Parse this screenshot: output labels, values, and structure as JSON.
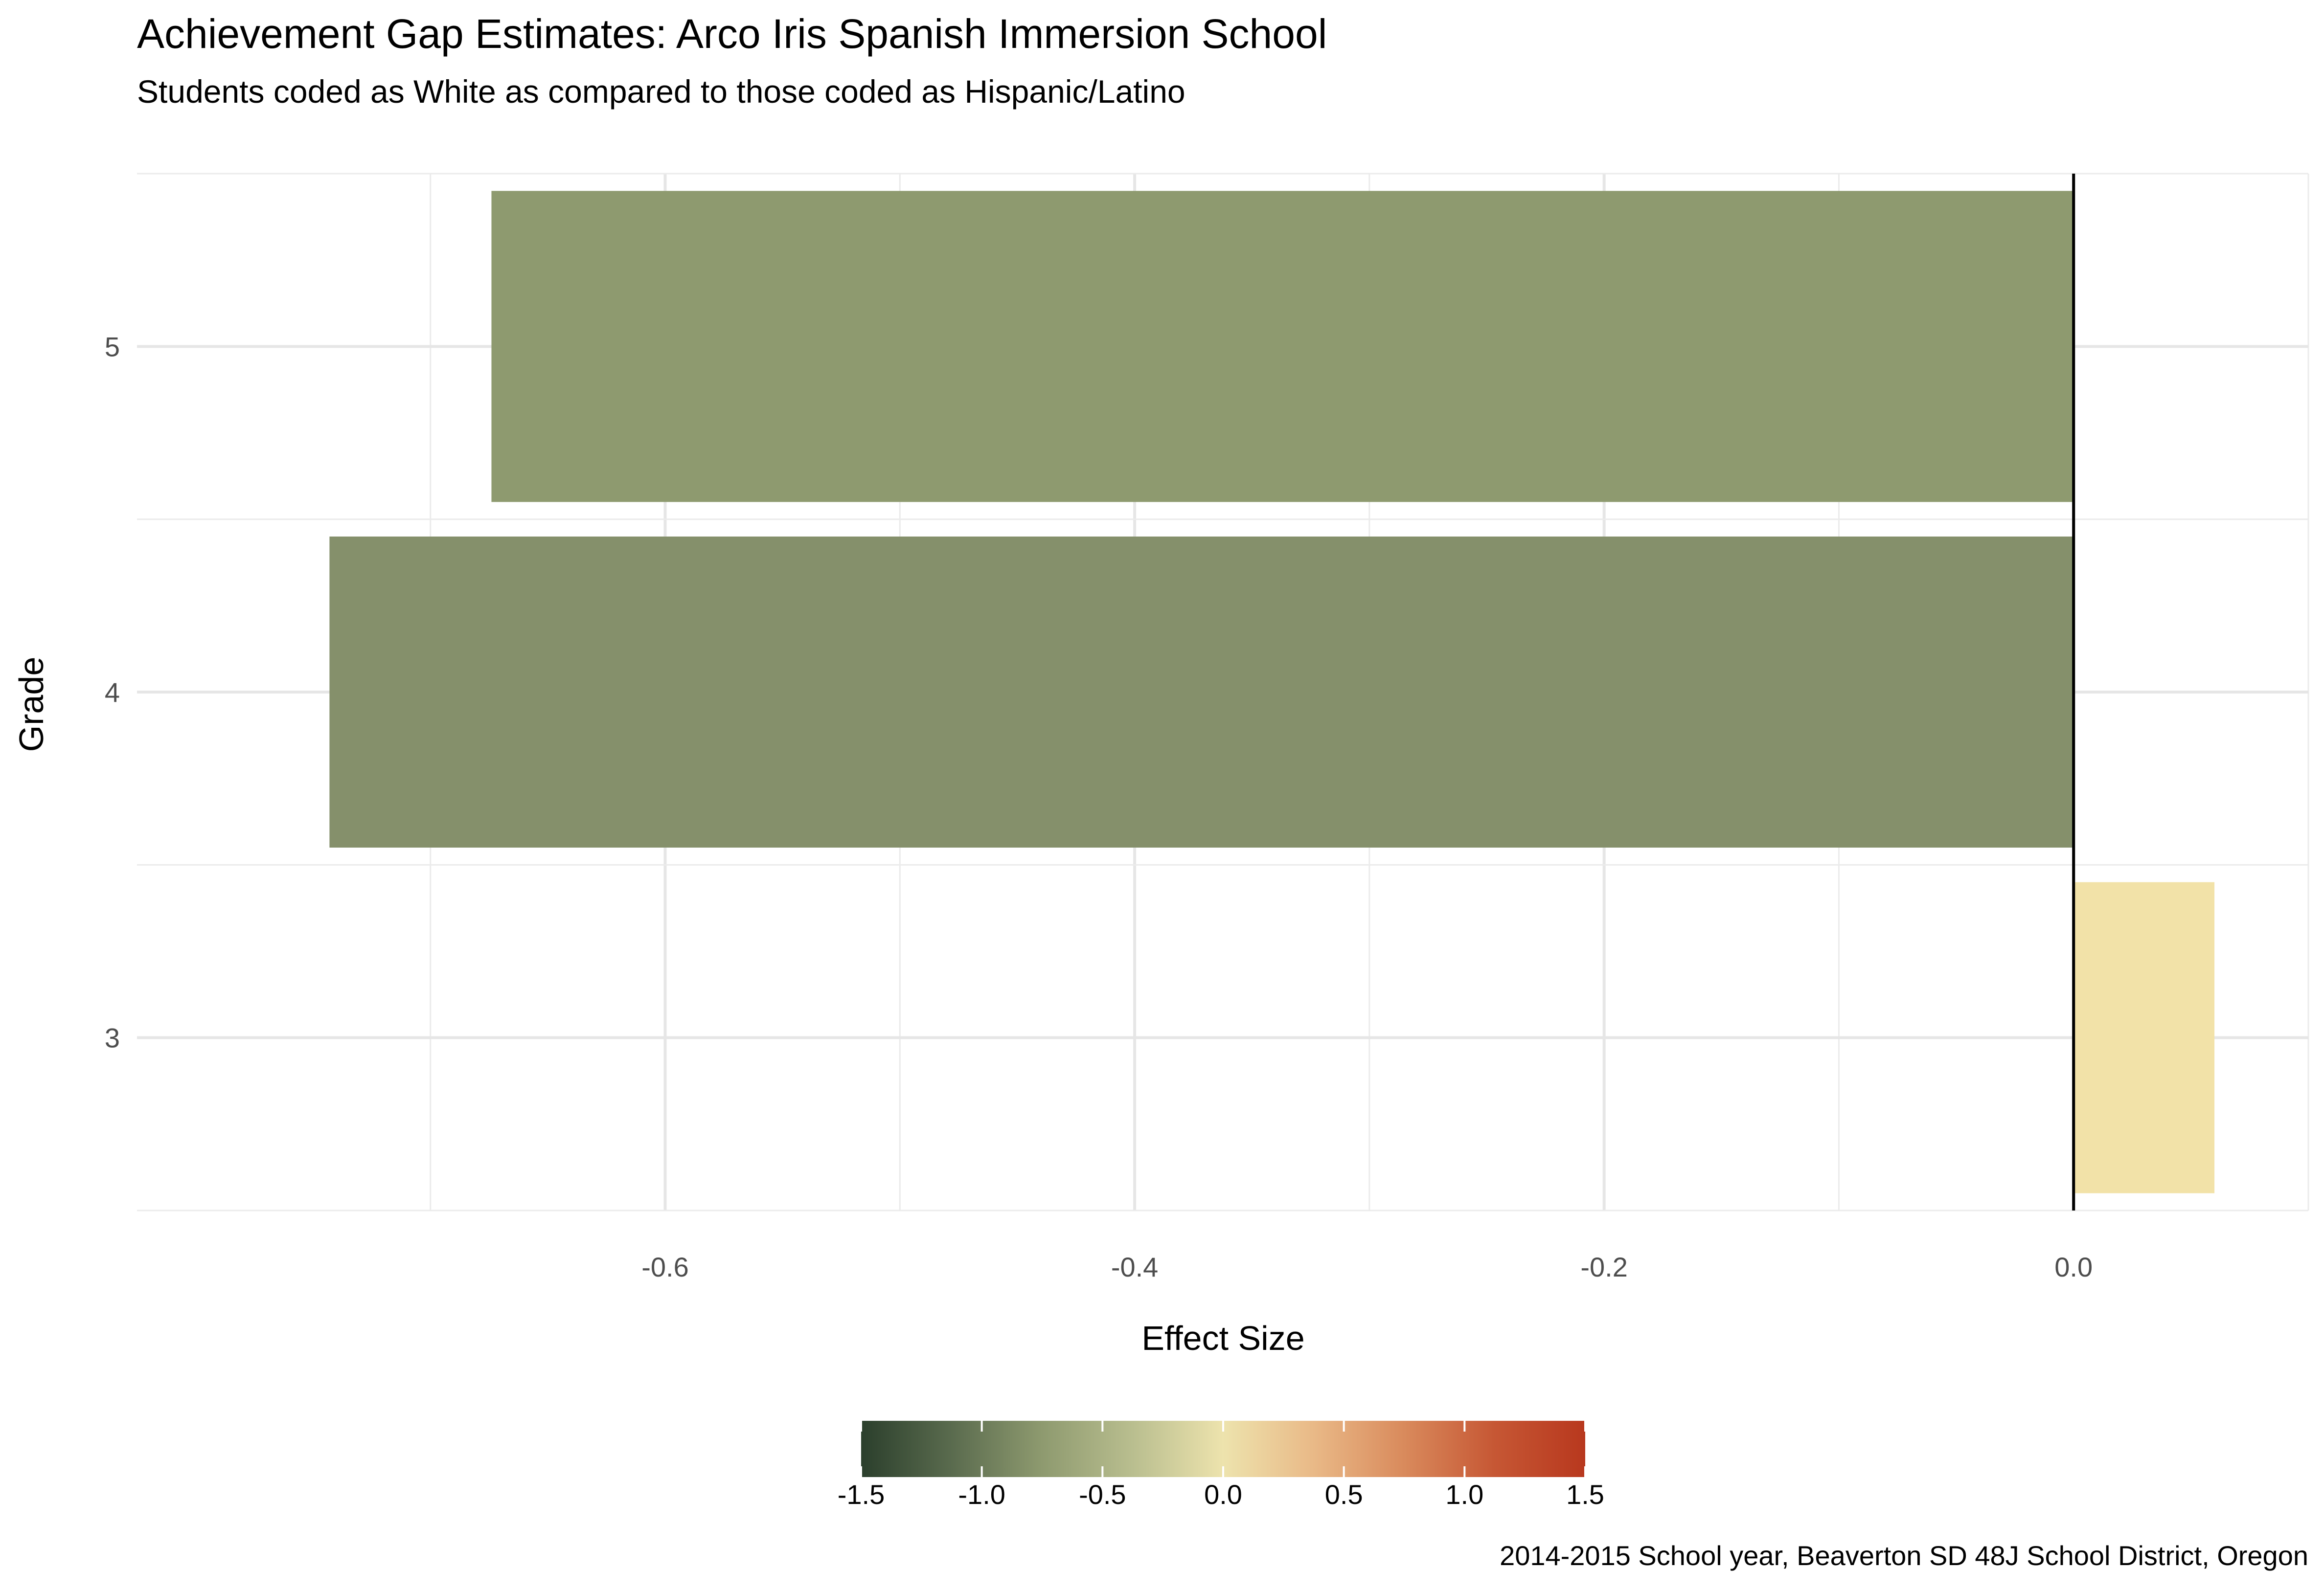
{
  "chart_data": {
    "type": "bar",
    "orientation": "horizontal",
    "title": "Achievement Gap Estimates: Arco Iris Spanish Immersion School",
    "subtitle": "Students coded as White as compared to those coded as Hispanic/Latino",
    "xlabel": "Effect Size",
    "ylabel": "Grade",
    "caption": "2014-2015 School year, Beaverton SD 48J School District, Oregon",
    "categories": [
      "3",
      "4",
      "5"
    ],
    "values": [
      0.06,
      -0.743,
      -0.674
    ],
    "bar_colors": [
      "#f2e2a8",
      "#85906b",
      "#8e9a6f"
    ],
    "xlim": [
      -0.825,
      0.1
    ],
    "x_ticks": [
      -0.6,
      -0.4,
      -0.2,
      0.0
    ],
    "x_tick_labels": [
      "-0.6",
      "-0.4",
      "-0.2",
      "0.0"
    ],
    "grid": true,
    "reference_line": 0.0,
    "legend": {
      "type": "colorbar",
      "position": "bottom",
      "range": [
        -1.5,
        1.5
      ],
      "ticks": [
        -1.5,
        -1.0,
        -0.5,
        0.0,
        0.5,
        1.0,
        1.5
      ],
      "tick_labels": [
        "-1.5",
        "-1.0",
        "-0.5",
        "0.0",
        "0.5",
        "1.0",
        "1.5"
      ],
      "gradient": [
        "#2b3f2c",
        "#5a6b4e",
        "#8e9a6f",
        "#b9be8f",
        "#ede3ad",
        "#e9b987",
        "#d98a5c",
        "#c65734",
        "#b8381e"
      ]
    }
  }
}
